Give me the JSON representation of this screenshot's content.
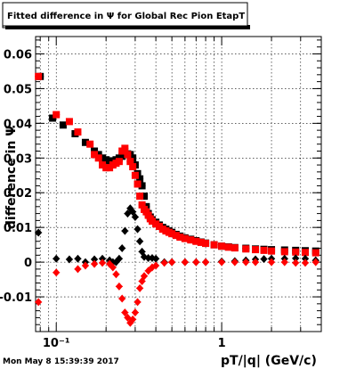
{
  "window": {
    "title": "Fitted difference in  Ψ  for Global Rec Pion EtapT",
    "timestamp": "Mon May  8 15:39:39 2017"
  },
  "chart_data": {
    "type": "scatter",
    "title": "Fitted difference in  Ψ  for Global Rec Pion EtapT",
    "xlabel": "pT/|q| (GeV/c)",
    "ylabel": "difference in Ψ",
    "xscale": "log",
    "xlim": [
      0.075,
      4.0
    ],
    "ylim": [
      -0.02,
      0.065
    ],
    "grid": true,
    "legend": "none",
    "xticks": [
      {
        "value": 0.1,
        "label": "10⁻¹"
      },
      {
        "value": 1,
        "label": "1"
      }
    ],
    "yticks": [
      {
        "value": -0.01,
        "label": "-0.01"
      },
      {
        "value": 0,
        "label": "0"
      },
      {
        "value": 0.01,
        "label": "0.01"
      },
      {
        "value": 0.02,
        "label": "0.02"
      },
      {
        "value": 0.03,
        "label": "0.03"
      },
      {
        "value": 0.04,
        "label": "0.04"
      },
      {
        "value": 0.05,
        "label": "0.05"
      },
      {
        "value": 0.06,
        "label": "0.06"
      }
    ],
    "series": [
      {
        "marker": "square",
        "color": "#000000",
        "points": [
          [
            0.08,
            0.0535
          ],
          [
            0.095,
            0.0415
          ],
          [
            0.11,
            0.0395
          ],
          [
            0.13,
            0.037
          ],
          [
            0.15,
            0.0345
          ],
          [
            0.17,
            0.032
          ],
          [
            0.18,
            0.031
          ],
          [
            0.19,
            0.03
          ],
          [
            0.2,
            0.0295
          ],
          [
            0.21,
            0.0292
          ],
          [
            0.22,
            0.029
          ],
          [
            0.23,
            0.0295
          ],
          [
            0.24,
            0.03
          ],
          [
            0.25,
            0.0305
          ],
          [
            0.26,
            0.031
          ],
          [
            0.27,
            0.0312
          ],
          [
            0.28,
            0.031
          ],
          [
            0.29,
            0.03
          ],
          [
            0.3,
            0.028
          ],
          [
            0.31,
            0.0255
          ],
          [
            0.32,
            0.024
          ],
          [
            0.33,
            0.022
          ],
          [
            0.34,
            0.019
          ],
          [
            0.35,
            0.016
          ],
          [
            0.36,
            0.014
          ],
          [
            0.37,
            0.013
          ],
          [
            0.38,
            0.0122
          ],
          [
            0.4,
            0.0115
          ],
          [
            0.42,
            0.0107
          ],
          [
            0.44,
            0.01
          ],
          [
            0.46,
            0.0095
          ],
          [
            0.48,
            0.009
          ],
          [
            0.5,
            0.0086
          ],
          [
            0.53,
            0.008
          ],
          [
            0.56,
            0.0075
          ],
          [
            0.6,
            0.007
          ],
          [
            0.65,
            0.0066
          ],
          [
            0.7,
            0.0062
          ],
          [
            0.75,
            0.0058
          ],
          [
            0.8,
            0.0055
          ],
          [
            0.9,
            0.005
          ],
          [
            1.0,
            0.0046
          ],
          [
            1.1,
            0.0044
          ],
          [
            1.2,
            0.0042
          ],
          [
            1.4,
            0.004
          ],
          [
            1.6,
            0.0038
          ],
          [
            1.8,
            0.0037
          ],
          [
            2.0,
            0.0036
          ],
          [
            2.4,
            0.0035
          ],
          [
            2.8,
            0.0034
          ],
          [
            3.2,
            0.0033
          ],
          [
            3.7,
            0.0032
          ]
        ]
      },
      {
        "marker": "square",
        "color": "#ff0000",
        "points": [
          [
            0.078,
            0.0535
          ],
          [
            0.1,
            0.0425
          ],
          [
            0.12,
            0.0405
          ],
          [
            0.135,
            0.0375
          ],
          [
            0.16,
            0.034
          ],
          [
            0.17,
            0.031
          ],
          [
            0.18,
            0.03
          ],
          [
            0.19,
            0.028
          ],
          [
            0.2,
            0.0272
          ],
          [
            0.21,
            0.0272
          ],
          [
            0.22,
            0.028
          ],
          [
            0.23,
            0.0285
          ],
          [
            0.24,
            0.029
          ],
          [
            0.25,
            0.032
          ],
          [
            0.26,
            0.0328
          ],
          [
            0.27,
            0.031
          ],
          [
            0.28,
            0.029
          ],
          [
            0.29,
            0.0275
          ],
          [
            0.3,
            0.025
          ],
          [
            0.31,
            0.0225
          ],
          [
            0.32,
            0.019
          ],
          [
            0.33,
            0.0165
          ],
          [
            0.34,
            0.0152
          ],
          [
            0.35,
            0.0145
          ],
          [
            0.36,
            0.0135
          ],
          [
            0.37,
            0.0125
          ],
          [
            0.38,
            0.0118
          ],
          [
            0.4,
            0.011
          ],
          [
            0.42,
            0.0103
          ],
          [
            0.44,
            0.0095
          ],
          [
            0.46,
            0.009
          ],
          [
            0.48,
            0.0086
          ],
          [
            0.5,
            0.0082
          ],
          [
            0.53,
            0.0077
          ],
          [
            0.56,
            0.0072
          ],
          [
            0.6,
            0.0068
          ],
          [
            0.65,
            0.0064
          ],
          [
            0.7,
            0.006
          ],
          [
            0.75,
            0.0057
          ],
          [
            0.8,
            0.0054
          ],
          [
            0.9,
            0.005
          ],
          [
            1.0,
            0.0046
          ],
          [
            1.1,
            0.0043
          ],
          [
            1.2,
            0.0041
          ],
          [
            1.4,
            0.0038
          ],
          [
            1.6,
            0.0036
          ],
          [
            1.8,
            0.0034
          ],
          [
            2.0,
            0.0032
          ],
          [
            2.4,
            0.003
          ],
          [
            2.8,
            0.0029
          ],
          [
            3.2,
            0.0028
          ],
          [
            3.7,
            0.0027
          ]
        ]
      },
      {
        "marker": "diamond",
        "color": "#000000",
        "points": [
          [
            0.078,
            0.0085
          ],
          [
            0.1,
            0.001
          ],
          [
            0.12,
            0.0008
          ],
          [
            0.135,
            0.001
          ],
          [
            0.15,
            0.0
          ],
          [
            0.17,
            0.0008
          ],
          [
            0.19,
            0.001
          ],
          [
            0.21,
            0.0005
          ],
          [
            0.22,
            0.0
          ],
          [
            0.23,
            0.0
          ],
          [
            0.24,
            0.001
          ],
          [
            0.25,
            0.004
          ],
          [
            0.26,
            0.009
          ],
          [
            0.27,
            0.014
          ],
          [
            0.28,
            0.0155
          ],
          [
            0.29,
            0.0145
          ],
          [
            0.3,
            0.013
          ],
          [
            0.31,
            0.0095
          ],
          [
            0.32,
            0.006
          ],
          [
            0.33,
            0.003
          ],
          [
            0.34,
            0.0015
          ],
          [
            0.36,
            0.0012
          ],
          [
            0.38,
            0.0012
          ],
          [
            0.4,
            0.001
          ],
          [
            0.45,
            0.0
          ],
          [
            0.5,
            0.0
          ],
          [
            0.6,
            0.0
          ],
          [
            0.7,
            0.0
          ],
          [
            0.8,
            0.0
          ],
          [
            1.0,
            0.0002
          ],
          [
            1.2,
            0.0003
          ],
          [
            1.4,
            0.0005
          ],
          [
            1.6,
            0.0008
          ],
          [
            1.8,
            0.0009
          ],
          [
            2.0,
            0.001
          ],
          [
            2.4,
            0.001
          ],
          [
            2.8,
            0.0011
          ],
          [
            3.2,
            0.001
          ],
          [
            3.7,
            0.0005
          ]
        ]
      },
      {
        "marker": "diamond",
        "color": "#ff0000",
        "points": [
          [
            0.078,
            -0.0115
          ],
          [
            0.1,
            -0.003
          ],
          [
            0.135,
            -0.002
          ],
          [
            0.15,
            -0.001
          ],
          [
            0.17,
            -0.0005
          ],
          [
            0.19,
            -0.0002
          ],
          [
            0.21,
            -0.0005
          ],
          [
            0.22,
            -0.0015
          ],
          [
            0.23,
            -0.0035
          ],
          [
            0.24,
            -0.007
          ],
          [
            0.25,
            -0.0105
          ],
          [
            0.26,
            -0.0145
          ],
          [
            0.27,
            -0.016
          ],
          [
            0.28,
            -0.0175
          ],
          [
            0.29,
            -0.0165
          ],
          [
            0.3,
            -0.0145
          ],
          [
            0.31,
            -0.0115
          ],
          [
            0.32,
            -0.0075
          ],
          [
            0.33,
            -0.0055
          ],
          [
            0.34,
            -0.004
          ],
          [
            0.36,
            -0.0025
          ],
          [
            0.38,
            -0.0015
          ],
          [
            0.4,
            -0.001
          ],
          [
            0.45,
            -0.0002
          ],
          [
            0.5,
            0.0
          ],
          [
            0.6,
            0.0
          ],
          [
            0.7,
            0.0
          ],
          [
            0.8,
            0.0
          ],
          [
            1.0,
            0.0
          ],
          [
            1.2,
            0.0
          ],
          [
            1.4,
            0.0
          ],
          [
            1.6,
            0.0
          ],
          [
            2.0,
            0.0
          ],
          [
            2.4,
            0.0
          ],
          [
            2.8,
            -0.0002
          ],
          [
            3.2,
            -0.0002
          ],
          [
            3.7,
            0.0
          ]
        ]
      }
    ]
  }
}
